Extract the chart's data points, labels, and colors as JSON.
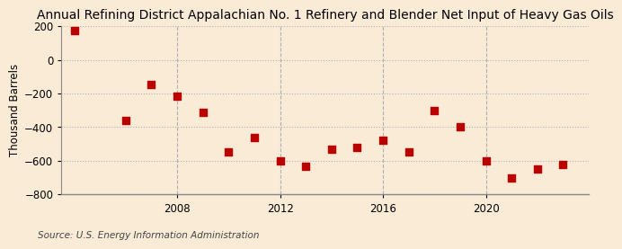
{
  "title": "Annual Refining District Appalachian No. 1 Refinery and Blender Net Input of Heavy Gas Oils",
  "ylabel": "Thousand Barrels",
  "source": "Source: U.S. Energy Information Administration",
  "background_color": "#faebd7",
  "point_color": "#bb0000",
  "years": [
    2004,
    2006,
    2007,
    2008,
    2009,
    2010,
    2011,
    2012,
    2013,
    2014,
    2015,
    2016,
    2017,
    2018,
    2019,
    2020,
    2021,
    2022,
    2023
  ],
  "values": [
    175,
    -360,
    -145,
    -215,
    -310,
    -545,
    -460,
    -600,
    -635,
    -530,
    -520,
    -480,
    -550,
    -300,
    -400,
    -600,
    -700,
    -648,
    -625
  ],
  "ylim": [
    -800,
    200
  ],
  "yticks": [
    -800,
    -600,
    -400,
    -200,
    0,
    200
  ],
  "xlim": [
    2003.5,
    2024
  ],
  "xticks": [
    2008,
    2012,
    2016,
    2020
  ],
  "grid_color": "#b0b0b0",
  "title_fontsize": 10,
  "label_fontsize": 8.5,
  "source_fontsize": 7.5,
  "marker_size": 30
}
